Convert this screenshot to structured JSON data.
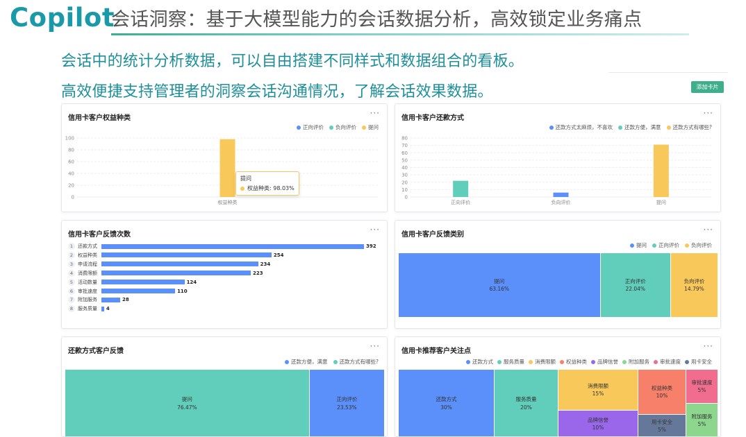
{
  "header": {
    "logo": "Copilot",
    "headline": "会话洞察：基于大模型能力的会话数据分析，高效锁定业务痛点",
    "sub1": "会话中的统计分析数据，可以自由搭建不同样式和数据组合的看板。",
    "sub2": "高效便捷支持管理者的洞察会话沟通情况，了解会话效果数据。"
  },
  "toolbar": {
    "add_card": "添加卡片"
  },
  "more_icon": "···",
  "colors": {
    "blue": "#5b8ff9",
    "green": "#61cdbb",
    "yellow": "#f8c85a",
    "red": "#f6806a",
    "purple": "#9a67ea",
    "lightgreen": "#8cd68e",
    "pink": "#f06d8f",
    "slate": "#66789a",
    "teal": "#3fae8a"
  },
  "card1": {
    "title": "信用卡客户权益种类",
    "legend": [
      "正向评价",
      "负向评价",
      "提问"
    ],
    "chart_data": {
      "type": "bar",
      "categories": [
        "权益种类"
      ],
      "series": [
        {
          "name": "提问",
          "values": [
            98.03
          ]
        }
      ],
      "ylim": [
        0,
        100
      ],
      "yticks": [
        "0",
        "20",
        "40",
        "60",
        "80",
        "100"
      ]
    },
    "tooltip": {
      "title": "提问",
      "label": "权益种类: 98.03%"
    }
  },
  "card2": {
    "title": "信用卡客户还款方式",
    "legend": [
      "还款方式太麻烦，不喜欢",
      "还款方便，满意",
      "还款方式有哪些?"
    ],
    "chart_data": {
      "type": "bar",
      "categories": [
        "正向评价",
        "负向评价",
        "提问"
      ],
      "values": [
        22,
        6,
        71
      ],
      "ylim": [
        0,
        80
      ],
      "yticks": [
        "0",
        "10",
        "20",
        "30",
        "40",
        "50",
        "60",
        "70",
        "80"
      ]
    }
  },
  "card3": {
    "title": "信用卡客户反馈次数",
    "chart_data": {
      "type": "bar",
      "rows": [
        {
          "rank": "1",
          "label": "还款方式",
          "value": 392
        },
        {
          "rank": "2",
          "label": "权益种类",
          "value": 254
        },
        {
          "rank": "3",
          "label": "申请流程",
          "value": 234
        },
        {
          "rank": "4",
          "label": "消费限额",
          "value": 223
        },
        {
          "rank": "5",
          "label": "活动数量",
          "value": 124
        },
        {
          "rank": "6",
          "label": "审批速度",
          "value": 110
        },
        {
          "rank": "7",
          "label": "附加服务",
          "value": 28
        },
        {
          "rank": "8",
          "label": "服务质量",
          "value": 4
        }
      ]
    }
  },
  "card4": {
    "title": "信用卡客户反馈类别",
    "legend": [
      "提问",
      "正向评价",
      "负向评价"
    ],
    "chart_data": {
      "type": "treemap",
      "items": [
        {
          "name": "提问",
          "pct": "63.16%",
          "value": 63.16
        },
        {
          "name": "正向评价",
          "pct": "22.04%",
          "value": 22.04
        },
        {
          "name": "负向评价",
          "pct": "14.79%",
          "value": 14.79
        }
      ]
    }
  },
  "card5": {
    "title": "还款方式客户反馈",
    "legend": [
      "还款方便，满意",
      "还款方式有哪些?"
    ],
    "chart_data": {
      "type": "treemap",
      "items": [
        {
          "name": "提问",
          "pct": "76.47%",
          "value": 76.47
        },
        {
          "name": "正向评价",
          "pct": "23.53%",
          "value": 23.53
        }
      ]
    }
  },
  "card6": {
    "title": "信用卡推荐客户关注点",
    "legend": [
      "还款方式",
      "服务质量",
      "消费限额",
      "权益种类",
      "品牌信誉",
      "附加服务",
      "审批速度",
      "用卡安全"
    ],
    "chart_data": {
      "type": "treemap",
      "items": [
        {
          "name": "还款方式",
          "pct": "30%",
          "value": 30
        },
        {
          "name": "服务质量",
          "pct": "20%",
          "value": 20
        },
        {
          "name": "消费限额",
          "pct": "15%",
          "value": 15
        },
        {
          "name": "品牌信誉",
          "pct": "10%",
          "value": 10
        },
        {
          "name": "权益种类",
          "pct": "10%",
          "value": 10
        },
        {
          "name": "用卡安全",
          "pct": "5%",
          "value": 5
        },
        {
          "name": "审批速度",
          "pct": "5%",
          "value": 5
        },
        {
          "name": "附加服务",
          "pct": "5%",
          "value": 5
        }
      ]
    }
  }
}
